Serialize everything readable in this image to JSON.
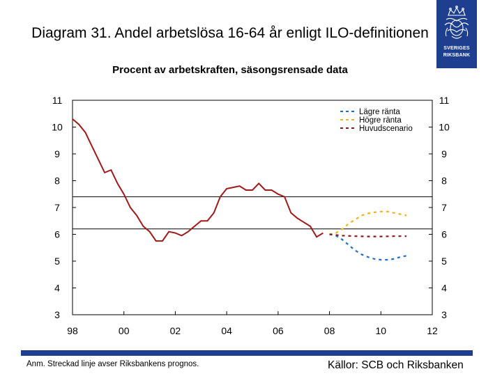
{
  "header": {
    "title": "Diagram 31. Andel arbetslösa 16-64 år enligt ILO-definitionen",
    "subtitle": "Procent av arbetskraften, säsongsrensade data"
  },
  "logo": {
    "line1": "SVERIGES",
    "line2": "RIKSBANK"
  },
  "footer": {
    "note": "Anm. Streckad linje avser Riksbankens prognos.",
    "source": "Källor: SCB och Riksbanken"
  },
  "colors": {
    "main_line": "#a01818",
    "low_rate": "#1f6ec4",
    "high_rate": "#f0b21c",
    "main_scenario": "#8b1a1a",
    "brand": "#1e3f8f"
  },
  "chart_data": {
    "type": "line",
    "title": "",
    "xlabel": "",
    "ylabel": "",
    "xlim": [
      1998,
      2012
    ],
    "ylim": [
      3,
      11
    ],
    "x_ticks": [
      {
        "value": 1998,
        "label": "98"
      },
      {
        "value": 2000,
        "label": "00"
      },
      {
        "value": 2002,
        "label": "02"
      },
      {
        "value": 2004,
        "label": "04"
      },
      {
        "value": 2006,
        "label": "06"
      },
      {
        "value": 2008,
        "label": "08"
      },
      {
        "value": 2010,
        "label": "10"
      },
      {
        "value": 2012,
        "label": "12"
      }
    ],
    "y_ticks": [
      3,
      4,
      5,
      6,
      7,
      8,
      9,
      10,
      11
    ],
    "grid": false,
    "legend_position": "top-right",
    "reference_lines": [
      7.4,
      6.2
    ],
    "series": [
      {
        "name": "",
        "style": "solid",
        "color": "#a01818",
        "points": [
          [
            1998.0,
            10.3
          ],
          [
            1998.25,
            10.1
          ],
          [
            1998.5,
            9.8
          ],
          [
            1998.75,
            9.3
          ],
          [
            1999.0,
            8.8
          ],
          [
            1999.25,
            8.3
          ],
          [
            1999.5,
            8.4
          ],
          [
            1999.75,
            7.9
          ],
          [
            2000.0,
            7.5
          ],
          [
            2000.25,
            7.0
          ],
          [
            2000.5,
            6.7
          ],
          [
            2000.75,
            6.3
          ],
          [
            2001.0,
            6.1
          ],
          [
            2001.25,
            5.75
          ],
          [
            2001.5,
            5.75
          ],
          [
            2001.75,
            6.1
          ],
          [
            2002.0,
            6.05
          ],
          [
            2002.25,
            5.95
          ],
          [
            2002.5,
            6.1
          ],
          [
            2002.75,
            6.3
          ],
          [
            2003.0,
            6.5
          ],
          [
            2003.25,
            6.5
          ],
          [
            2003.5,
            6.8
          ],
          [
            2003.75,
            7.4
          ],
          [
            2004.0,
            7.7
          ],
          [
            2004.25,
            7.75
          ],
          [
            2004.5,
            7.8
          ],
          [
            2004.75,
            7.65
          ],
          [
            2005.0,
            7.65
          ],
          [
            2005.25,
            7.9
          ],
          [
            2005.5,
            7.65
          ],
          [
            2005.75,
            7.65
          ],
          [
            2006.0,
            7.5
          ],
          [
            2006.25,
            7.4
          ],
          [
            2006.5,
            6.8
          ],
          [
            2006.75,
            6.6
          ],
          [
            2007.0,
            6.45
          ],
          [
            2007.25,
            6.3
          ],
          [
            2007.5,
            5.9
          ],
          [
            2007.75,
            6.05
          ]
        ]
      },
      {
        "name": "Lägre ränta",
        "style": "dashed",
        "color": "#1f6ec4",
        "points": [
          [
            2008.0,
            6.0
          ],
          [
            2008.25,
            5.95
          ],
          [
            2008.5,
            5.8
          ],
          [
            2008.75,
            5.6
          ],
          [
            2009.0,
            5.4
          ],
          [
            2009.25,
            5.25
          ],
          [
            2009.5,
            5.15
          ],
          [
            2009.75,
            5.08
          ],
          [
            2010.0,
            5.05
          ],
          [
            2010.25,
            5.05
          ],
          [
            2010.5,
            5.08
          ],
          [
            2010.75,
            5.15
          ],
          [
            2011.0,
            5.2
          ]
        ]
      },
      {
        "name": "Högre ränta",
        "style": "dashed",
        "color": "#f0b21c",
        "points": [
          [
            2008.0,
            6.0
          ],
          [
            2008.25,
            6.05
          ],
          [
            2008.5,
            6.2
          ],
          [
            2008.75,
            6.4
          ],
          [
            2009.0,
            6.55
          ],
          [
            2009.25,
            6.7
          ],
          [
            2009.5,
            6.78
          ],
          [
            2009.75,
            6.82
          ],
          [
            2010.0,
            6.85
          ],
          [
            2010.25,
            6.85
          ],
          [
            2010.5,
            6.8
          ],
          [
            2010.75,
            6.75
          ],
          [
            2011.0,
            6.7
          ]
        ]
      },
      {
        "name": "Huvudscenario",
        "style": "dashed",
        "color": "#8b1a1a",
        "points": [
          [
            2008.0,
            6.0
          ],
          [
            2008.5,
            5.95
          ],
          [
            2009.0,
            5.93
          ],
          [
            2009.5,
            5.92
          ],
          [
            2010.0,
            5.92
          ],
          [
            2010.5,
            5.93
          ],
          [
            2011.0,
            5.93
          ]
        ]
      }
    ]
  }
}
